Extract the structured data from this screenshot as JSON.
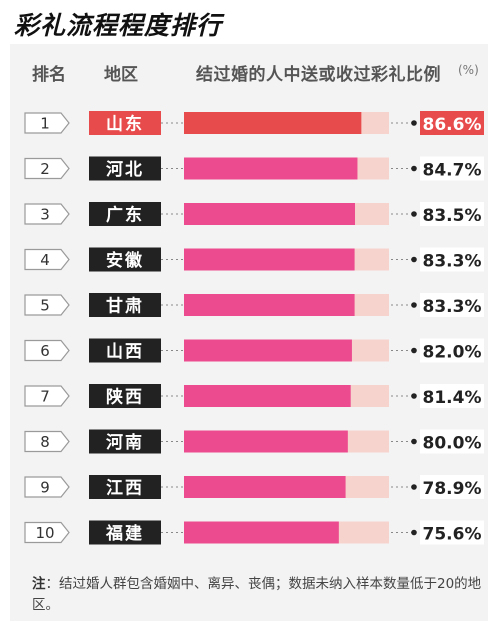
{
  "title": "彩礼流程程度排行",
  "header": {
    "rank": "排名",
    "region": "地区",
    "metric": "结过婚的人中送或收过彩礼比例",
    "unit": "(%)"
  },
  "note": {
    "prefix": "注",
    "text": "：结过婚人群包含婚姻中、离异、丧偶；数据未纳入样本数量低于20的地区。"
  },
  "colors": {
    "top_label_bg": "#e84b4b",
    "label_bg": "#222222",
    "top_bar": "#e84b4b",
    "bar": "#ec4b8f",
    "track": "#f6d3cd"
  },
  "chart_data": {
    "type": "bar",
    "orientation": "horizontal",
    "title": "彩礼流程程度排行",
    "ylabel": "结过婚的人中送或收过彩礼比例",
    "unit": "%",
    "rows": [
      {
        "rank": "1",
        "region": "山东",
        "value": 86.6,
        "label": "86.6%"
      },
      {
        "rank": "2",
        "region": "河北",
        "value": 84.7,
        "label": "84.7%"
      },
      {
        "rank": "3",
        "region": "广东",
        "value": 83.5,
        "label": "83.5%"
      },
      {
        "rank": "4",
        "region": "安徽",
        "value": 83.3,
        "label": "83.3%"
      },
      {
        "rank": "5",
        "region": "甘肃",
        "value": 83.3,
        "label": "83.3%"
      },
      {
        "rank": "6",
        "region": "山西",
        "value": 82.0,
        "label": "82.0%"
      },
      {
        "rank": "7",
        "region": "陕西",
        "value": 81.4,
        "label": "81.4%"
      },
      {
        "rank": "8",
        "region": "河南",
        "value": 80.0,
        "label": "80.0%"
      },
      {
        "rank": "9",
        "region": "江西",
        "value": 78.9,
        "label": "78.9%"
      },
      {
        "rank": "10",
        "region": "福建",
        "value": 75.6,
        "label": "75.6%"
      }
    ]
  }
}
